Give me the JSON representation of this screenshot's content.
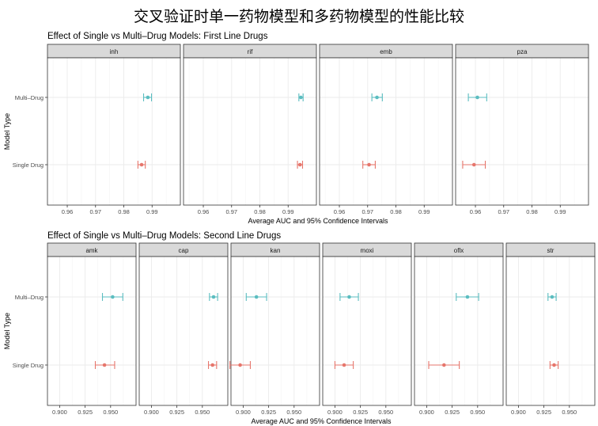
{
  "main_title": "交叉验证时单一药物模型和多药物模型的性能比较",
  "chart_data": [
    {
      "type": "dot-errorbar",
      "title": "Effect of Single vs Multi–Drug Models: First Line Drugs",
      "xlabel": "Average AUC and 95% Confidence Intervals",
      "ylabel": "Model Type",
      "categories": [
        "Multi–Drug",
        "Single Drug"
      ],
      "xlim": [
        0.953,
        1.0
      ],
      "x_ticks": [
        0.96,
        0.97,
        0.98,
        0.99
      ],
      "x_tick_labels": [
        "0.96",
        "0.97",
        "0.98",
        "0.99"
      ],
      "grid": true,
      "facets": [
        {
          "name": "inh",
          "points": [
            {
              "model": "Multi–Drug",
              "mean": 0.9885,
              "lo": 0.987,
              "hi": 0.9898
            },
            {
              "model": "Single Drug",
              "mean": 0.9863,
              "lo": 0.985,
              "hi": 0.9876
            }
          ]
        },
        {
          "name": "rif",
          "points": [
            {
              "model": "Multi–Drug",
              "mean": 0.9945,
              "lo": 0.9938,
              "hi": 0.9953
            },
            {
              "model": "Single Drug",
              "mean": 0.9942,
              "lo": 0.9933,
              "hi": 0.9951
            }
          ]
        },
        {
          "name": "emb",
          "points": [
            {
              "model": "Multi–Drug",
              "mean": 0.9733,
              "lo": 0.9715,
              "hi": 0.9752
            },
            {
              "model": "Single Drug",
              "mean": 0.9705,
              "lo": 0.9683,
              "hi": 0.9727
            }
          ]
        },
        {
          "name": "pza",
          "points": [
            {
              "model": "Multi–Drug",
              "mean": 0.9607,
              "lo": 0.9575,
              "hi": 0.964
            },
            {
              "model": "Single Drug",
              "mean": 0.9595,
              "lo": 0.9555,
              "hi": 0.9635
            }
          ]
        }
      ]
    },
    {
      "type": "dot-errorbar",
      "title": "Effect of Single vs Multi–Drug Models: Second Line Drugs",
      "xlabel": "Average AUC and 95% Confidence Intervals",
      "ylabel": "Model Type",
      "categories": [
        "Multi–Drug",
        "Single Drug"
      ],
      "xlim": [
        0.888,
        0.975
      ],
      "x_ticks": [
        0.9,
        0.925,
        0.95
      ],
      "x_tick_labels": [
        "0.900",
        "0.925",
        "0.950"
      ],
      "grid": true,
      "facets": [
        {
          "name": "amk",
          "points": [
            {
              "model": "Multi–Drug",
              "mean": 0.952,
              "lo": 0.942,
              "hi": 0.962
            },
            {
              "model": "Single Drug",
              "mean": 0.944,
              "lo": 0.935,
              "hi": 0.954
            }
          ]
        },
        {
          "name": "cap",
          "points": [
            {
              "model": "Multi–Drug",
              "mean": 0.961,
              "lo": 0.957,
              "hi": 0.965
            },
            {
              "model": "Single Drug",
              "mean": 0.96,
              "lo": 0.956,
              "hi": 0.964
            }
          ]
        },
        {
          "name": "kan",
          "points": [
            {
              "model": "Multi–Drug",
              "mean": 0.913,
              "lo": 0.903,
              "hi": 0.923
            },
            {
              "model": "Single Drug",
              "mean": 0.897,
              "lo": 0.887,
              "hi": 0.907
            }
          ]
        },
        {
          "name": "moxi",
          "points": [
            {
              "model": "Multi–Drug",
              "mean": 0.914,
              "lo": 0.905,
              "hi": 0.923
            },
            {
              "model": "Single Drug",
              "mean": 0.909,
              "lo": 0.9,
              "hi": 0.918
            }
          ]
        },
        {
          "name": "oflx",
          "points": [
            {
              "model": "Multi–Drug",
              "mean": 0.94,
              "lo": 0.929,
              "hi": 0.951
            },
            {
              "model": "Single Drug",
              "mean": 0.917,
              "lo": 0.902,
              "hi": 0.932
            }
          ]
        },
        {
          "name": "str",
          "points": [
            {
              "model": "Multi–Drug",
              "mean": 0.933,
              "lo": 0.929,
              "hi": 0.937
            },
            {
              "model": "Single Drug",
              "mean": 0.935,
              "lo": 0.931,
              "hi": 0.939
            }
          ]
        }
      ]
    }
  ],
  "colors": {
    "multi": "#5bbdc0",
    "single": "#e6766c",
    "strip": "#d9d9d9",
    "grid": "#ebebeb",
    "panel_border": "#333333"
  }
}
